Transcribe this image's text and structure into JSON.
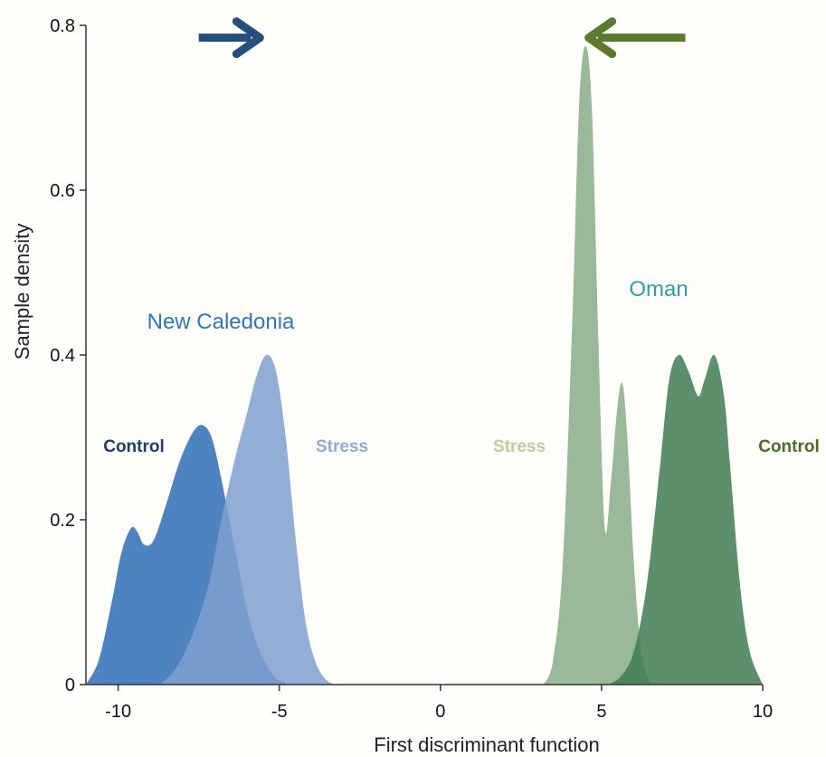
{
  "chart_data": {
    "type": "area",
    "xlabel": "First discriminant function",
    "ylabel": "Sample density",
    "xlim": [
      -11,
      10
    ],
    "ylim": [
      0,
      0.8
    ],
    "x_ticks": [
      "-10",
      "-5",
      "0",
      "5",
      "10"
    ],
    "x_tick_values": [
      -10,
      -5,
      0,
      5,
      10
    ],
    "y_ticks": [
      "0",
      "0.2",
      "0.4",
      "0.6",
      "0.8"
    ],
    "y_tick_values": [
      0,
      0.2,
      0.4,
      0.6,
      0.8
    ],
    "group_labels": [
      {
        "text": "New Caledonia",
        "color": "#2e78b7"
      },
      {
        "text": "Oman",
        "color": "#2a9fb0"
      }
    ],
    "series": [
      {
        "name": "Control",
        "group": "New Caledonia",
        "fill": "#2e6fb4",
        "opacity": 0.85,
        "label_color": "#1e3f6b",
        "x": [
          -11,
          -10.6,
          -10.2,
          -9.9,
          -9.6,
          -9.4,
          -9.2,
          -8.9,
          -8.5,
          -8.1,
          -7.7,
          -7.4,
          -7.1,
          -6.8,
          -6.4,
          -6.0,
          -5.6,
          -5.2,
          -4.9,
          -4.6
        ],
        "values": [
          0,
          0.03,
          0.1,
          0.16,
          0.19,
          0.185,
          0.17,
          0.175,
          0.22,
          0.27,
          0.305,
          0.315,
          0.3,
          0.25,
          0.17,
          0.09,
          0.04,
          0.012,
          0.003,
          0
        ]
      },
      {
        "name": "Stress",
        "group": "New Caledonia",
        "fill": "#7f9fcf",
        "opacity": 0.85,
        "label_color": "#8fa9d9",
        "x": [
          -8.7,
          -8.2,
          -7.7,
          -7.2,
          -6.8,
          -6.4,
          -6.0,
          -5.7,
          -5.4,
          -5.1,
          -4.8,
          -4.5,
          -4.2,
          -3.9,
          -3.6,
          -3.3
        ],
        "values": [
          0,
          0.02,
          0.06,
          0.12,
          0.2,
          0.27,
          0.33,
          0.375,
          0.4,
          0.38,
          0.3,
          0.18,
          0.08,
          0.03,
          0.008,
          0
        ]
      },
      {
        "name": "Stress",
        "group": "Oman",
        "fill": "#8fb08f",
        "opacity": 0.9,
        "label_color": "#b5cf9f",
        "x": [
          3.2,
          3.5,
          3.8,
          4.1,
          4.3,
          4.5,
          4.7,
          4.9,
          5.1,
          5.3,
          5.5,
          5.65,
          5.8,
          6.0,
          6.2,
          6.4,
          6.6
        ],
        "values": [
          0,
          0.03,
          0.15,
          0.45,
          0.7,
          0.775,
          0.7,
          0.42,
          0.19,
          0.25,
          0.34,
          0.365,
          0.3,
          0.15,
          0.05,
          0.012,
          0
        ]
      },
      {
        "name": "Control",
        "group": "Oman",
        "fill": "#3f7c52",
        "opacity": 0.85,
        "label_color": "#4a6b2a",
        "x": [
          5.2,
          5.6,
          6.0,
          6.4,
          6.8,
          7.1,
          7.4,
          7.7,
          8.0,
          8.2,
          8.5,
          8.8,
          9.0,
          9.3,
          9.6,
          10.0
        ],
        "values": [
          0,
          0.01,
          0.04,
          0.12,
          0.26,
          0.37,
          0.4,
          0.38,
          0.35,
          0.37,
          0.4,
          0.35,
          0.26,
          0.12,
          0.04,
          0
        ]
      }
    ],
    "arrows": [
      {
        "direction": "right",
        "from_x": -7.5,
        "to_x": -5.6,
        "y": 0.785,
        "color": "#25507e"
      },
      {
        "direction": "left",
        "from_x": 7.6,
        "to_x": 4.6,
        "y": 0.785,
        "color": "#5b7a2e"
      }
    ]
  }
}
